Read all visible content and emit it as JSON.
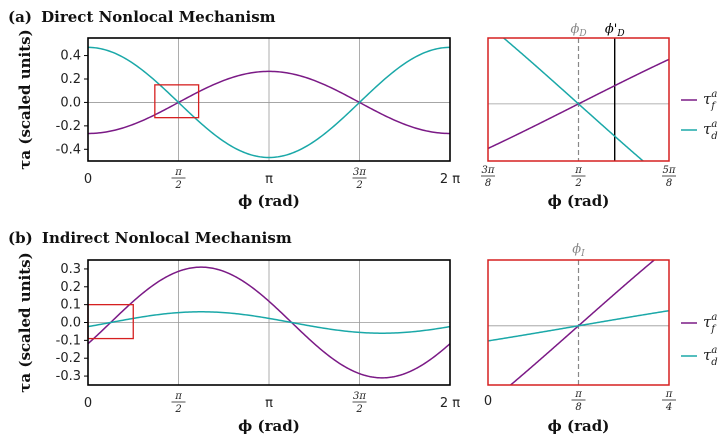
{
  "colors": {
    "purple": "#7b1a86",
    "teal": "#1aa8a8",
    "red": "#d62020",
    "grid": "#999999",
    "dashed": "#888888",
    "black": "#000000"
  },
  "panels": {
    "a": {
      "label": "(a)",
      "title": "Direct Nonlocal Mechanism"
    },
    "b": {
      "label": "(b)",
      "title": "Indirect Nonlocal Mechanism"
    }
  },
  "labels": {
    "ylabel": "τa (scaled units)",
    "xlabel_main": "ϕ (rad)",
    "xlabel_zoom": "ϕ (rad)",
    "legend_f": "τfa",
    "legend_d": "τda",
    "phi_D": "ϕD",
    "phi_D_prime": "ϕ'D",
    "phi_I": "ϕI"
  },
  "chart_data": [
    {
      "id": "a-main",
      "type": "line",
      "title": "Direct Nonlocal Mechanism",
      "xlabel": "ϕ (rad)",
      "ylabel": "τa (scaled units)",
      "xlim": [
        0,
        6.2832
      ],
      "ylim": [
        -0.5,
        0.55
      ],
      "xticks": [
        "0",
        "π/2",
        "π",
        "3π/2",
        "2π"
      ],
      "xtick_values": [
        0,
        1.5708,
        3.1416,
        4.7124,
        6.2832
      ],
      "yticks": [
        "0.4",
        "0.2",
        "0.0",
        "-0.2",
        "-0.4"
      ],
      "ytick_values": [
        0.4,
        0.2,
        0.0,
        -0.2,
        -0.4
      ],
      "series": [
        {
          "key": "tau_f",
          "color": "#7b1a86",
          "amplitude": 0.265,
          "phase_deg": 180,
          "offset": 0.0
        },
        {
          "key": "tau_d",
          "color": "#1aa8a8",
          "amplitude": 0.47,
          "phase_deg": 0,
          "offset": 0.0
        }
      ],
      "zoom_box": {
        "x": [
          1.16,
          1.92
        ],
        "y": [
          -0.13,
          0.15
        ]
      },
      "grid": true
    },
    {
      "id": "a-zoom",
      "type": "line",
      "xlim": [
        1.1781,
        1.9635
      ],
      "ylim": [
        -0.13,
        0.15
      ],
      "xticks": [
        "3π/8",
        "π/2",
        "5π/8"
      ],
      "xtick_values": [
        1.1781,
        1.5708,
        1.9635
      ],
      "vlines": [
        {
          "x": 1.5708,
          "style": "dashed",
          "label": "ϕD"
        },
        {
          "x": 1.7279,
          "style": "solid",
          "label": "ϕ'D"
        }
      ],
      "series": [
        {
          "key": "tau_f",
          "color": "#7b1a86"
        },
        {
          "key": "tau_d",
          "color": "#1aa8a8"
        }
      ],
      "legend": [
        "τfa",
        "τda"
      ],
      "legend_position": "right"
    },
    {
      "id": "b-main",
      "type": "line",
      "title": "Indirect Nonlocal Mechanism",
      "xlabel": "ϕ (rad)",
      "ylabel": "τa (scaled units)",
      "xlim": [
        0,
        6.2832
      ],
      "ylim": [
        -0.35,
        0.35
      ],
      "xticks": [
        "0",
        "π/2",
        "π",
        "3π/2",
        "2π"
      ],
      "xtick_values": [
        0,
        1.5708,
        3.1416,
        4.7124,
        6.2832
      ],
      "yticks": [
        "0.3",
        "0.2",
        "0.1",
        "0.0",
        "-0.1",
        "-0.2",
        "-0.3"
      ],
      "ytick_values": [
        0.3,
        0.2,
        0.1,
        0.0,
        -0.1,
        -0.2,
        -0.3
      ],
      "series": [
        {
          "key": "tau_f",
          "color": "#7b1a86",
          "amplitude": 0.31,
          "phi0": 0.3927
        },
        {
          "key": "tau_d",
          "color": "#1aa8a8",
          "amplitude": 0.06,
          "phi0": 0.3927
        }
      ],
      "zoom_box": {
        "x": [
          0,
          0.7854
        ],
        "y": [
          -0.09,
          0.1
        ]
      },
      "grid": true
    },
    {
      "id": "b-zoom",
      "type": "line",
      "xlim": [
        0,
        0.7854
      ],
      "ylim": [
        -0.09,
        0.1
      ],
      "xticks": [
        "0",
        "π/8",
        "π/4"
      ],
      "xtick_values": [
        0,
        0.3927,
        0.7854
      ],
      "vlines": [
        {
          "x": 0.3927,
          "style": "dashed",
          "label": "ϕI"
        }
      ],
      "series": [
        {
          "key": "tau_f",
          "color": "#7b1a86"
        },
        {
          "key": "tau_d",
          "color": "#1aa8a8"
        }
      ],
      "legend": [
        "τfa",
        "τda"
      ],
      "legend_position": "right"
    }
  ]
}
